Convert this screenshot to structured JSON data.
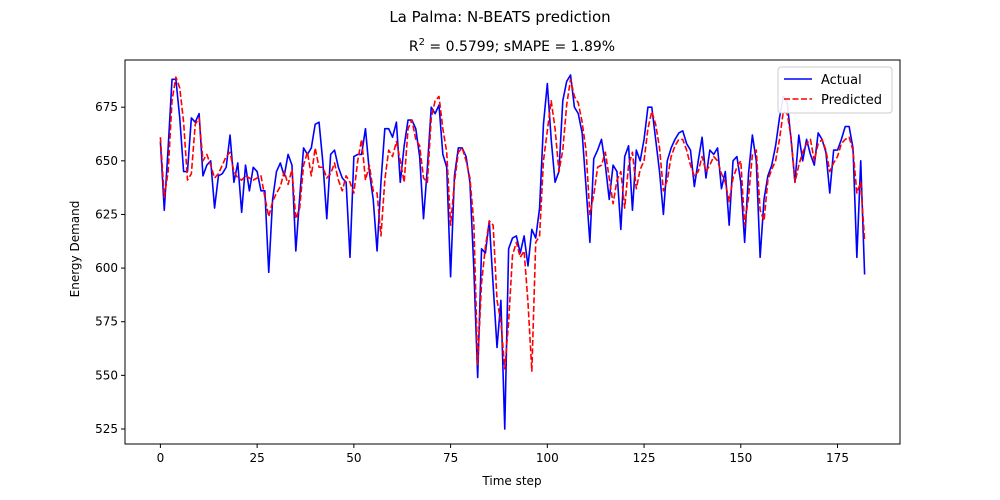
{
  "chart_data": {
    "type": "line",
    "suptitle": "La Palma: N-BEATS prediction",
    "title": {
      "r2_label": "R",
      "r2_sup": "2",
      "rest": " = 0.5799; sMAPE = 1.89%"
    },
    "xlabel": "Time step",
    "ylabel": "Energy Demand",
    "xlim": [
      -9.15,
      191.15
    ],
    "ylim": [
      518.0,
      697.0
    ],
    "xticks": [
      0,
      25,
      50,
      75,
      100,
      125,
      150,
      175
    ],
    "xtick_labels": [
      "0",
      "25",
      "50",
      "75",
      "100",
      "125",
      "150",
      "175"
    ],
    "yticks": [
      525,
      550,
      575,
      600,
      625,
      650,
      675
    ],
    "ytick_labels": [
      "525",
      "550",
      "575",
      "600",
      "625",
      "650",
      "675"
    ],
    "grid": false,
    "legend": "top-right",
    "series": [
      {
        "name": "Actual",
        "color": "#0000ff",
        "dash": "solid",
        "values": [
          659,
          627,
          656,
          688,
          688,
          670,
          645,
          645,
          670,
          668,
          672,
          643,
          648,
          650,
          628,
          643,
          644,
          647,
          662,
          640,
          649,
          626,
          648,
          636,
          647,
          645,
          636,
          636,
          598,
          632,
          645,
          649,
          643,
          653,
          648,
          608,
          633,
          656,
          653,
          656,
          667,
          668,
          649,
          623,
          653,
          655,
          647,
          642,
          640,
          605,
          652,
          653,
          653,
          665,
          645,
          632,
          608,
          640,
          665,
          665,
          661,
          668,
          640,
          657,
          669,
          669,
          665,
          652,
          623,
          647,
          675,
          672,
          676,
          653,
          647,
          596,
          643,
          656,
          656,
          652,
          640,
          600,
          549,
          609,
          607,
          622,
          592,
          563,
          585,
          525,
          609,
          614,
          615,
          607,
          615,
          601,
          618,
          614,
          628,
          667,
          686,
          660,
          640,
          645,
          678,
          687,
          690,
          675,
          672,
          663,
          638,
          612,
          651,
          655,
          660,
          648,
          632,
          648,
          645,
          618,
          652,
          657,
          627,
          655,
          650,
          660,
          675,
          675,
          660,
          645,
          625,
          650,
          656,
          660,
          663,
          664,
          658,
          655,
          638,
          650,
          661,
          642,
          655,
          653,
          656,
          637,
          645,
          620,
          650,
          652,
          640,
          612,
          644,
          662,
          650,
          605,
          632,
          643,
          648,
          657,
          670,
          680,
          677,
          660,
          640,
          662,
          650,
          660,
          653,
          648,
          663,
          660,
          654,
          635,
          655,
          655,
          660,
          666,
          666,
          656,
          605,
          650,
          597
        ],
        "x_start": 0
      },
      {
        "name": "Predicted",
        "color": "#ff0000",
        "dash": "dashed",
        "values": [
          661,
          633,
          645,
          678,
          689,
          684,
          668,
          641,
          644,
          667,
          670,
          650,
          653,
          648,
          642,
          644,
          648,
          652,
          654,
          645,
          642,
          641,
          643,
          642,
          641,
          642,
          643,
          633,
          624,
          631,
          635,
          638,
          645,
          639,
          646,
          623,
          628,
          648,
          654,
          643,
          656,
          647,
          647,
          642,
          644,
          649,
          641,
          636,
          643,
          640,
          635,
          650,
          660,
          641,
          648,
          636,
          635,
          615,
          641,
          655,
          652,
          659,
          650,
          640,
          665,
          669,
          660,
          657,
          642,
          640,
          670,
          678,
          680,
          665,
          654,
          620,
          640,
          654,
          656,
          650,
          642,
          621,
          555,
          593,
          610,
          622,
          620,
          585,
          575,
          553,
          575,
          606,
          612,
          605,
          608,
          584,
          552,
          612,
          615,
          650,
          664,
          678,
          665,
          645,
          655,
          676,
          688,
          680,
          677,
          668,
          655,
          625,
          634,
          647,
          648,
          654,
          642,
          630,
          641,
          645,
          628,
          648,
          654,
          637,
          646,
          650,
          665,
          673,
          667,
          656,
          636,
          641,
          652,
          657,
          660,
          660,
          655,
          648,
          643,
          645,
          652,
          645,
          648,
          652,
          650,
          644,
          640,
          631,
          642,
          647,
          650,
          620,
          633,
          653,
          655,
          627,
          622,
          641,
          646,
          650,
          660,
          673,
          672,
          661,
          640,
          648,
          654,
          658,
          660,
          650,
          658,
          660,
          655,
          645,
          649,
          652,
          658,
          660,
          661,
          655,
          635,
          640,
          613
        ],
        "x_start": 0
      }
    ]
  }
}
